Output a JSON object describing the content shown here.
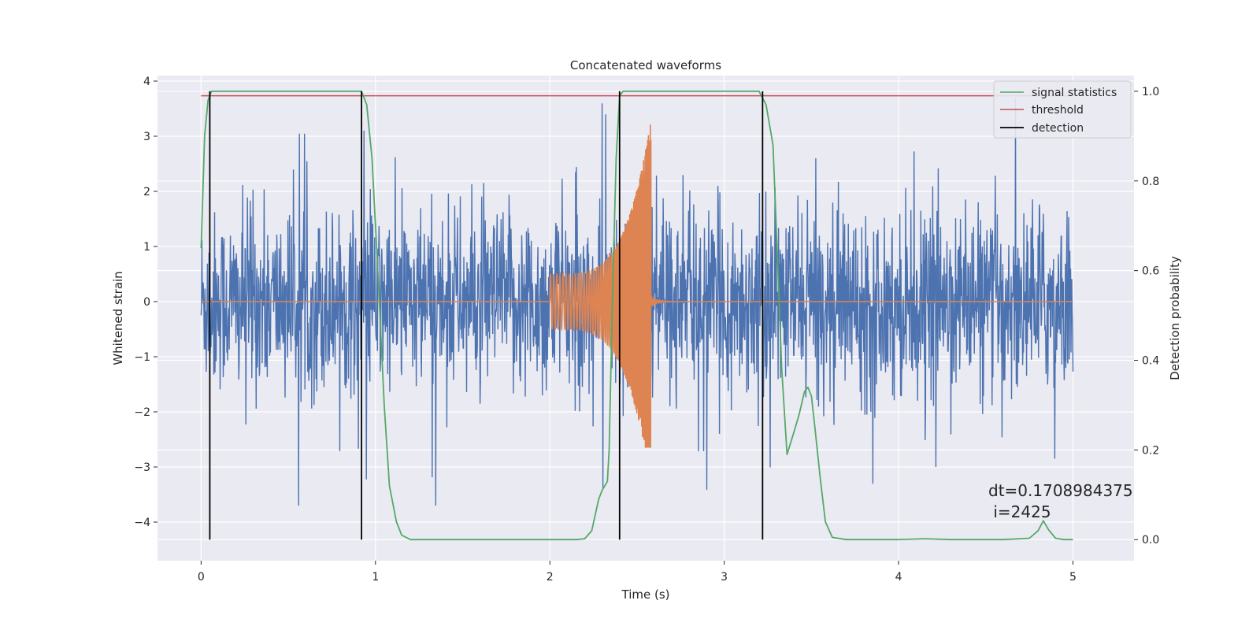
{
  "chart_data": {
    "type": "line",
    "title": "Concatenated waveforms",
    "xlabel": "Time (s)",
    "ylabel": "Whitened strain",
    "y2label": "Detection probability",
    "xlim": [
      -0.25,
      5.35
    ],
    "ylim": [
      -4.7,
      4.1
    ],
    "y2lim": [
      -0.047,
      1.035
    ],
    "x_ticks": [
      0,
      1,
      2,
      3,
      4,
      5
    ],
    "y_ticks": [
      -4,
      -3,
      -2,
      -1,
      0,
      1,
      2,
      3,
      4
    ],
    "y2_ticks": [
      0.0,
      0.2,
      0.4,
      0.6,
      0.8,
      1.0
    ],
    "x_tick_labels": [
      "0",
      "1",
      "2",
      "3",
      "4",
      "5"
    ],
    "y_tick_labels": [
      "−4",
      "−3",
      "−2",
      "−1",
      "0",
      "1",
      "2",
      "3",
      "4"
    ],
    "y2_tick_labels": [
      "0.0",
      "0.2",
      "0.4",
      "0.6",
      "0.8",
      "1.0"
    ],
    "grid": true,
    "legend_position": "top-right",
    "legend": [
      "signal statistics",
      "threshold",
      "detection"
    ],
    "noise_series": {
      "description_free_note": "",
      "x_range": [
        0,
        5
      ],
      "envelope_typical": 2.4,
      "envelope_max": 3.7
    },
    "chirp_series": {
      "x_start": 2.0,
      "x_merger": 2.58,
      "peak_amplitude_pos": 3.3,
      "peak_amplitude_neg": -2.65,
      "start_amplitude": 0.5
    },
    "signal_statistics": {
      "x": [
        0.0,
        0.02,
        0.04,
        0.06,
        0.08,
        0.1,
        0.2,
        0.5,
        0.8,
        0.92,
        0.95,
        0.98,
        1.02,
        1.05,
        1.08,
        1.12,
        1.15,
        1.2,
        1.5,
        2.0,
        2.15,
        2.2,
        2.24,
        2.28,
        2.3,
        2.33,
        2.34,
        2.36,
        2.38,
        2.4,
        2.42,
        2.5,
        2.8,
        3.2,
        3.24,
        3.28,
        3.3,
        3.33,
        3.36,
        3.4,
        3.43,
        3.46,
        3.48,
        3.5,
        3.52,
        3.55,
        3.58,
        3.62,
        3.7,
        4.0,
        4.15,
        4.3,
        4.6,
        4.75,
        4.8,
        4.83,
        4.86,
        4.9,
        4.95,
        5.0
      ],
      "y": [
        0.65,
        0.9,
        0.98,
        1.0,
        1.0,
        1.0,
        1.0,
        1.0,
        1.0,
        1.0,
        0.97,
        0.85,
        0.55,
        0.3,
        0.12,
        0.04,
        0.01,
        0.0,
        0.0,
        0.0,
        0.0,
        0.002,
        0.02,
        0.09,
        0.11,
        0.13,
        0.2,
        0.55,
        0.85,
        0.99,
        1.0,
        1.0,
        1.0,
        1.0,
        0.97,
        0.88,
        0.68,
        0.38,
        0.19,
        0.24,
        0.28,
        0.33,
        0.34,
        0.32,
        0.25,
        0.14,
        0.04,
        0.005,
        0.0,
        0.0,
        0.002,
        0.0,
        0.0,
        0.003,
        0.02,
        0.042,
        0.022,
        0.003,
        0.0,
        0.0
      ]
    },
    "threshold": {
      "y": 0.99,
      "x_range": [
        0,
        5
      ]
    },
    "detections": [
      0.05,
      0.92,
      2.4,
      3.22
    ],
    "annotation": "dt=0.1708984375\n i=2425",
    "colors": {
      "background": "#eaeaf2",
      "grid": "#ffffff",
      "noise": "#4c72b0",
      "chirp": "#dd8452",
      "signal_statistics": "#55a868",
      "threshold": "#c44e52",
      "detection": "#000000"
    }
  }
}
